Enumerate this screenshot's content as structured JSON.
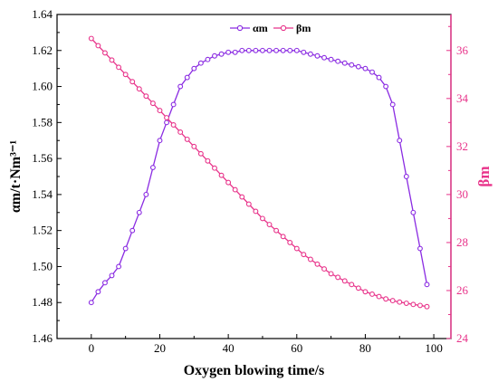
{
  "chart_data": {
    "type": "line",
    "xlabel": "Oxygen blowing time/s",
    "ylabel_left": "αm/t·Nm³⁻¹",
    "ylabel_right": "βm",
    "xlim": [
      -10,
      105
    ],
    "ylim_left": [
      1.46,
      1.64
    ],
    "ylim_right": [
      24,
      37.5
    ],
    "x_ticks": [
      "0",
      "20",
      "40",
      "60",
      "80",
      "100"
    ],
    "y_left_ticks": [
      "1.46",
      "1.48",
      "1.50",
      "1.52",
      "1.54",
      "1.56",
      "1.58",
      "1.60",
      "1.62",
      "1.64"
    ],
    "y_right_ticks": [
      "24",
      "26",
      "28",
      "30",
      "32",
      "34",
      "36"
    ],
    "legend_position": "top-center",
    "grid": false,
    "colors": {
      "alpha": "#8a2be2",
      "beta": "#e8338a"
    },
    "series": [
      {
        "name": "αm",
        "axis": "left",
        "x": [
          0,
          2,
          4,
          6,
          8,
          10,
          12,
          14,
          16,
          18,
          20,
          22,
          24,
          26,
          28,
          30,
          32,
          34,
          36,
          38,
          40,
          42,
          44,
          46,
          48,
          50,
          52,
          54,
          56,
          58,
          60,
          62,
          64,
          66,
          68,
          70,
          72,
          74,
          76,
          78,
          80,
          82,
          84,
          86,
          88,
          90,
          92,
          94,
          96,
          98
        ],
        "values": [
          1.48,
          1.486,
          1.491,
          1.495,
          1.5,
          1.51,
          1.52,
          1.53,
          1.54,
          1.555,
          1.57,
          1.58,
          1.59,
          1.6,
          1.605,
          1.61,
          1.613,
          1.615,
          1.617,
          1.618,
          1.619,
          1.619,
          1.62,
          1.62,
          1.62,
          1.62,
          1.62,
          1.62,
          1.62,
          1.62,
          1.62,
          1.619,
          1.618,
          1.617,
          1.616,
          1.615,
          1.614,
          1.613,
          1.612,
          1.611,
          1.61,
          1.608,
          1.605,
          1.6,
          1.59,
          1.57,
          1.55,
          1.53,
          1.51,
          1.49
        ]
      },
      {
        "name": "βm",
        "axis": "right",
        "x": [
          0,
          2,
          4,
          6,
          8,
          10,
          12,
          14,
          16,
          18,
          20,
          22,
          24,
          26,
          28,
          30,
          32,
          34,
          36,
          38,
          40,
          42,
          44,
          46,
          48,
          50,
          52,
          54,
          56,
          58,
          60,
          62,
          64,
          66,
          68,
          70,
          72,
          74,
          76,
          78,
          80,
          82,
          84,
          86,
          88,
          90,
          92,
          94,
          96,
          98
        ],
        "values": [
          36.5,
          36.2,
          35.9,
          35.6,
          35.3,
          35.0,
          34.7,
          34.4,
          34.1,
          33.8,
          33.5,
          33.2,
          32.9,
          32.6,
          32.3,
          32.0,
          31.7,
          31.4,
          31.1,
          30.8,
          30.5,
          30.2,
          29.9,
          29.6,
          29.3,
          29.0,
          28.75,
          28.5,
          28.25,
          28.0,
          27.75,
          27.5,
          27.3,
          27.1,
          26.9,
          26.7,
          26.55,
          26.4,
          26.25,
          26.1,
          25.95,
          25.85,
          25.75,
          25.65,
          25.58,
          25.52,
          25.47,
          25.42,
          25.38,
          25.33
        ]
      }
    ]
  }
}
